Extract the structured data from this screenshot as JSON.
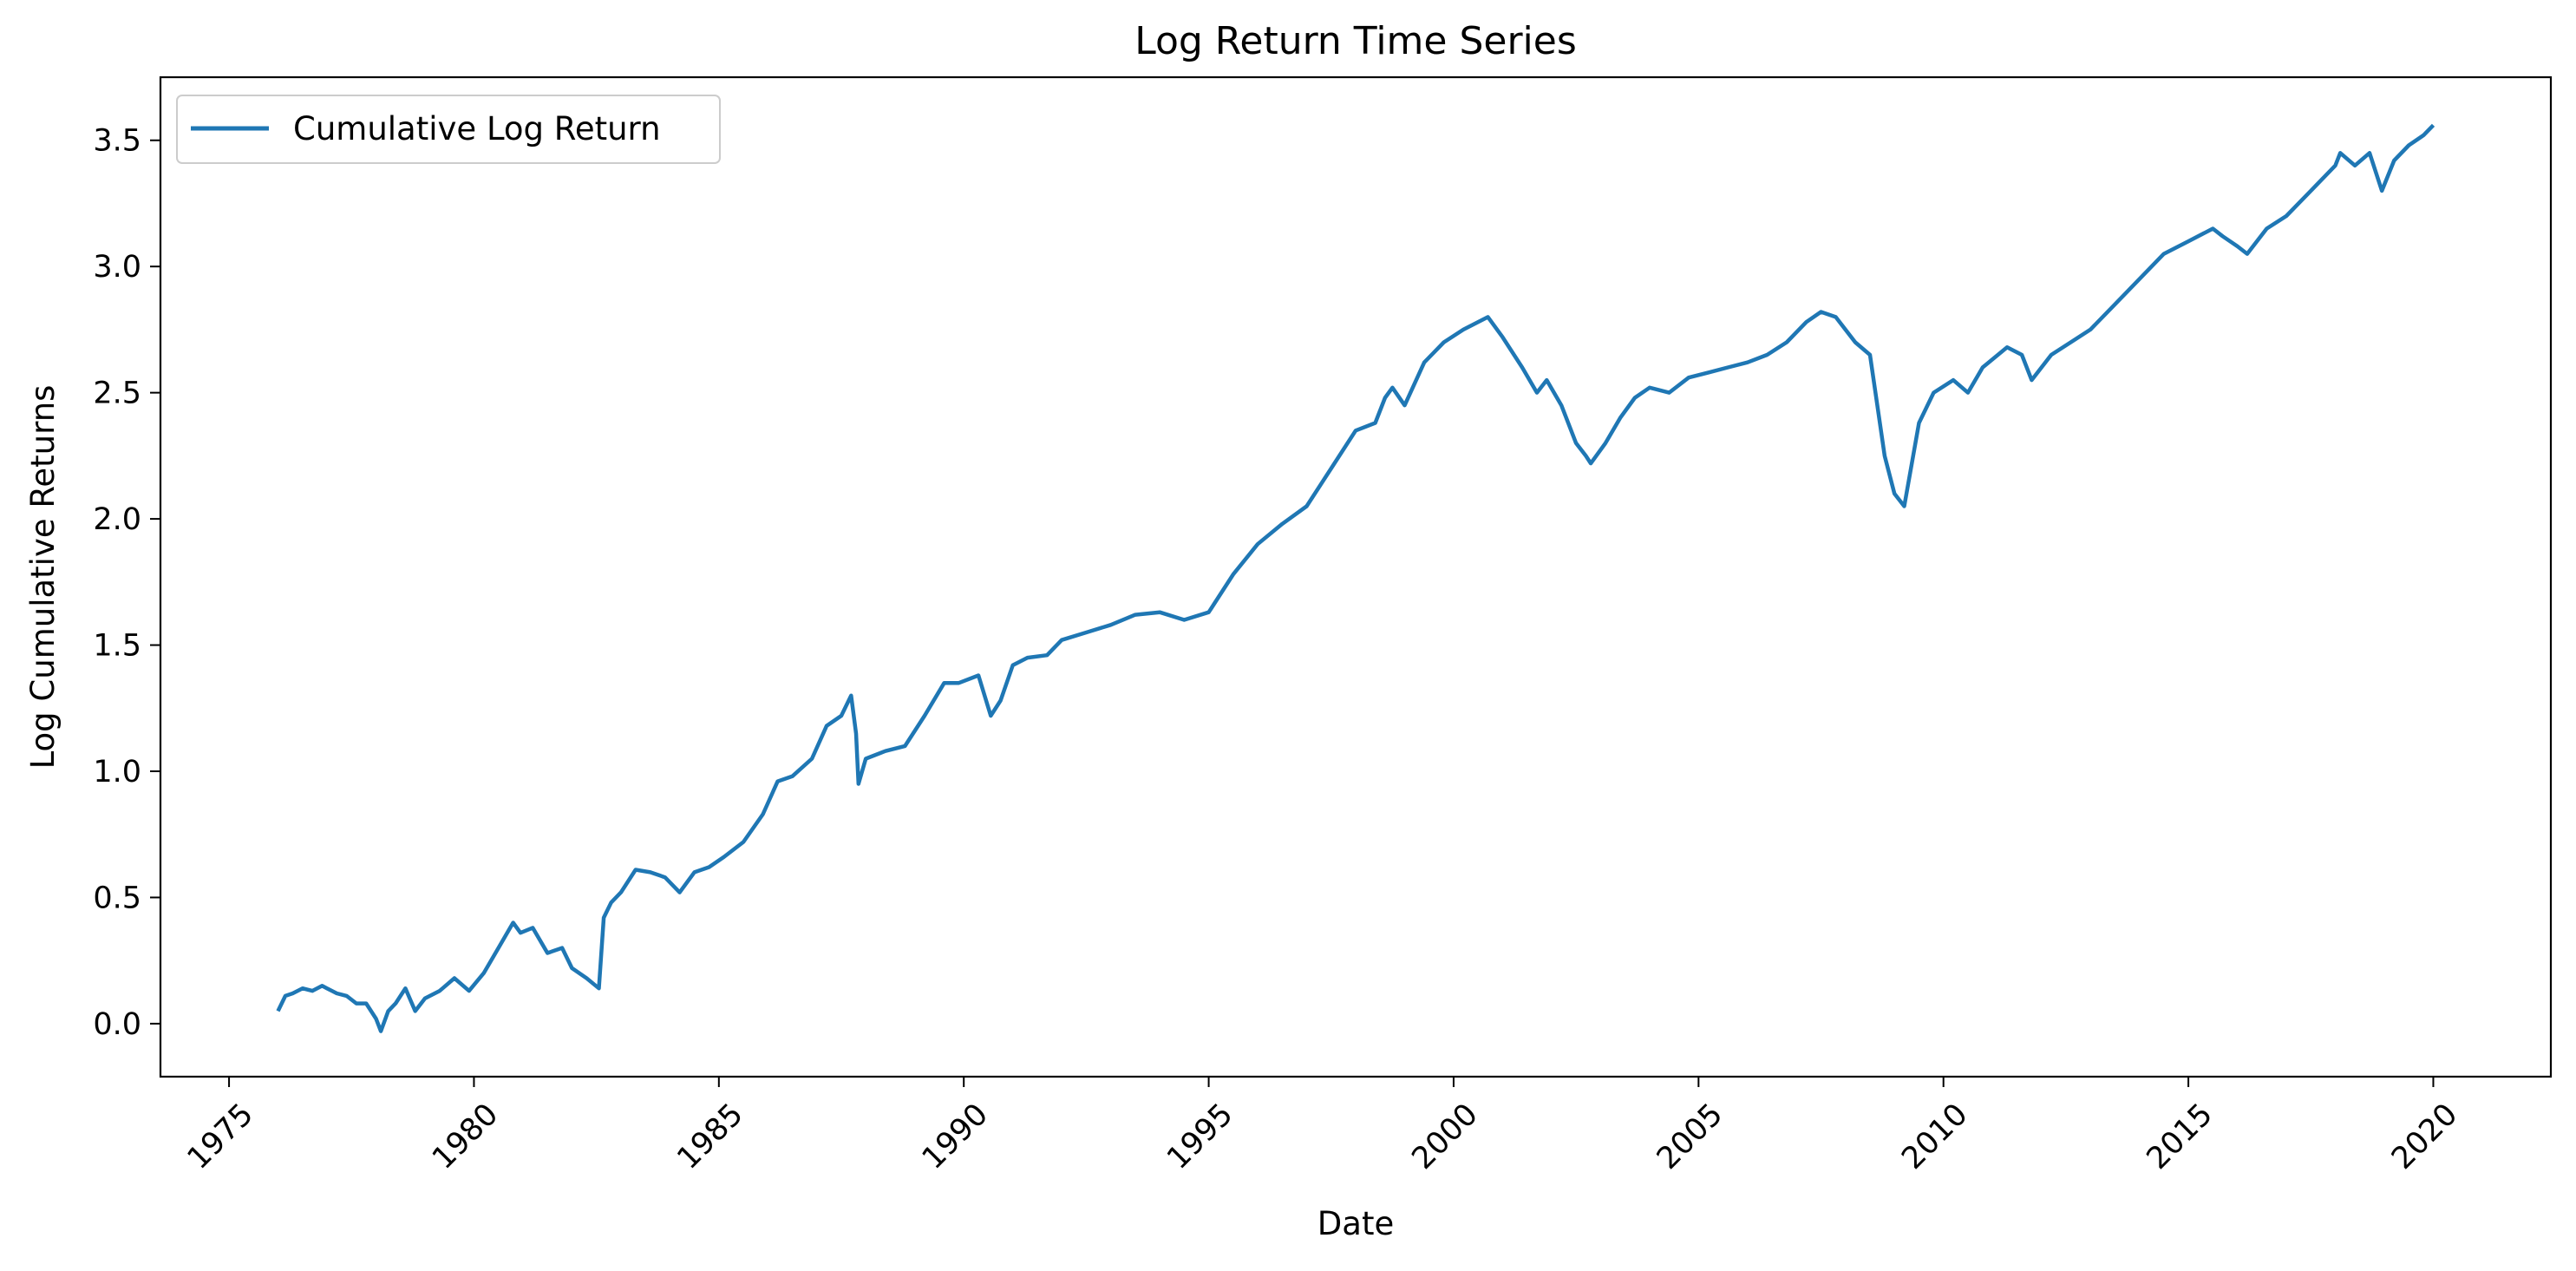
{
  "chart_data": {
    "type": "line",
    "title": "Log Return Time Series",
    "xlabel": "Date",
    "ylabel": "Log Cumulative Returns",
    "xlim": [
      1973.6,
      2022.4
    ],
    "ylim": [
      -0.21,
      3.75
    ],
    "x_ticks": [
      1975,
      1980,
      1985,
      1990,
      1995,
      2000,
      2005,
      2010,
      2015,
      2020
    ],
    "x_tick_labels": [
      "1975",
      "1980",
      "1985",
      "1990",
      "1995",
      "2000",
      "2005",
      "2010",
      "2015",
      "2020"
    ],
    "y_ticks": [
      0.0,
      0.5,
      1.0,
      1.5,
      2.0,
      2.5,
      3.0,
      3.5
    ],
    "y_tick_labels": [
      "0.0",
      "0.5",
      "1.0",
      "1.5",
      "2.0",
      "2.5",
      "3.0",
      "3.5"
    ],
    "grid": false,
    "legend_position": "upper-left",
    "colors": {
      "series": "#1f77b4"
    },
    "series": [
      {
        "name": "Cumulative Log Return",
        "x": [
          1976.0,
          1976.15,
          1976.3,
          1976.5,
          1976.7,
          1976.9,
          1977.0,
          1977.2,
          1977.4,
          1977.6,
          1977.8,
          1978.0,
          1978.1,
          1978.25,
          1978.4,
          1978.6,
          1978.8,
          1979.0,
          1979.3,
          1979.6,
          1979.9,
          1980.2,
          1980.5,
          1980.8,
          1980.95,
          1981.2,
          1981.5,
          1981.8,
          1982.0,
          1982.3,
          1982.55,
          1982.65,
          1982.8,
          1983.0,
          1983.3,
          1983.6,
          1983.9,
          1984.2,
          1984.5,
          1984.8,
          1985.1,
          1985.5,
          1985.9,
          1986.2,
          1986.5,
          1986.9,
          1987.2,
          1987.5,
          1987.7,
          1987.8,
          1987.85,
          1988.0,
          1988.4,
          1988.8,
          1989.2,
          1989.6,
          1989.9,
          1990.3,
          1990.55,
          1990.75,
          1991.0,
          1991.3,
          1991.7,
          1992.0,
          1992.5,
          1993.0,
          1993.5,
          1994.0,
          1994.5,
          1995.0,
          1995.5,
          1996.0,
          1996.5,
          1997.0,
          1997.5,
          1998.0,
          1998.4,
          1998.6,
          1998.75,
          1999.0,
          1999.4,
          1999.8,
          2000.2,
          2000.7,
          2001.0,
          2001.4,
          2001.7,
          2001.9,
          2002.2,
          2002.5,
          2002.7,
          2002.8,
          2003.1,
          2003.4,
          2003.7,
          2004.0,
          2004.4,
          2004.8,
          2005.2,
          2005.6,
          2006.0,
          2006.4,
          2006.8,
          2007.2,
          2007.5,
          2007.8,
          2008.2,
          2008.5,
          2008.8,
          2009.0,
          2009.2,
          2009.5,
          2009.8,
          2010.2,
          2010.5,
          2010.8,
          2011.3,
          2011.6,
          2011.8,
          2012.2,
          2012.6,
          2013.0,
          2013.5,
          2014.0,
          2014.5,
          2015.0,
          2015.5,
          2015.7,
          2016.0,
          2016.2,
          2016.6,
          2017.0,
          2017.5,
          2018.0,
          2018.1,
          2018.4,
          2018.7,
          2018.95,
          2019.2,
          2019.5,
          2019.8,
          2020.0
        ],
        "values": [
          0.05,
          0.11,
          0.12,
          0.14,
          0.13,
          0.15,
          0.14,
          0.12,
          0.11,
          0.08,
          0.08,
          0.02,
          -0.03,
          0.05,
          0.08,
          0.14,
          0.05,
          0.1,
          0.13,
          0.18,
          0.13,
          0.2,
          0.3,
          0.4,
          0.36,
          0.38,
          0.28,
          0.3,
          0.22,
          0.18,
          0.14,
          0.42,
          0.48,
          0.52,
          0.61,
          0.6,
          0.58,
          0.52,
          0.6,
          0.62,
          0.66,
          0.72,
          0.83,
          0.96,
          0.98,
          1.05,
          1.18,
          1.22,
          1.3,
          1.15,
          0.95,
          1.05,
          1.08,
          1.1,
          1.22,
          1.35,
          1.35,
          1.38,
          1.22,
          1.28,
          1.42,
          1.45,
          1.46,
          1.52,
          1.55,
          1.58,
          1.62,
          1.63,
          1.6,
          1.63,
          1.78,
          1.9,
          1.98,
          2.05,
          2.2,
          2.35,
          2.38,
          2.48,
          2.52,
          2.45,
          2.62,
          2.7,
          2.75,
          2.8,
          2.72,
          2.6,
          2.5,
          2.55,
          2.45,
          2.3,
          2.25,
          2.22,
          2.3,
          2.4,
          2.48,
          2.52,
          2.5,
          2.56,
          2.58,
          2.6,
          2.62,
          2.65,
          2.7,
          2.78,
          2.82,
          2.8,
          2.7,
          2.65,
          2.25,
          2.1,
          2.05,
          2.38,
          2.5,
          2.55,
          2.5,
          2.6,
          2.68,
          2.65,
          2.55,
          2.65,
          2.7,
          2.75,
          2.85,
          2.95,
          3.05,
          3.1,
          3.15,
          3.12,
          3.08,
          3.05,
          3.15,
          3.2,
          3.3,
          3.4,
          3.45,
          3.4,
          3.45,
          3.3,
          3.42,
          3.48,
          3.52,
          3.56
        ]
      }
    ]
  }
}
